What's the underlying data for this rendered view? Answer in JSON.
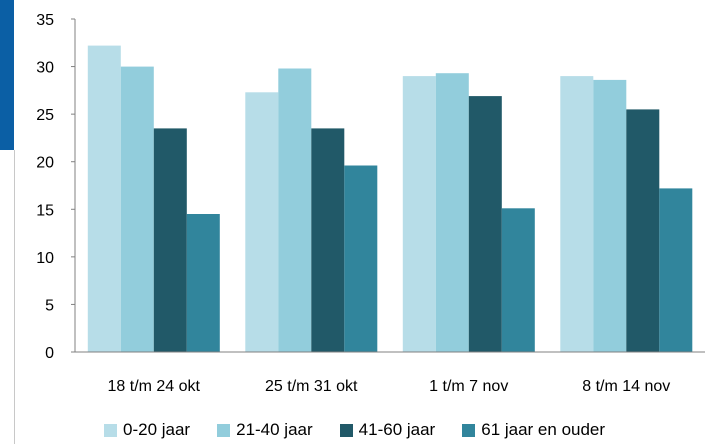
{
  "chart_data": {
    "type": "bar",
    "categories": [
      "18 t/m 24 okt",
      "25 t/m 31 okt",
      "1 t/m 7 nov",
      "8 t/m 14 nov"
    ],
    "series": [
      {
        "name": "0-20 jaar",
        "color": "#b7dde8",
        "values": [
          32.2,
          27.3,
          29.0,
          29.0
        ]
      },
      {
        "name": "21-40 jaar",
        "color": "#92cddc",
        "values": [
          30.0,
          29.8,
          29.3,
          28.6
        ]
      },
      {
        "name": "41-60 jaar",
        "color": "#215968",
        "values": [
          23.5,
          23.5,
          26.9,
          25.5
        ]
      },
      {
        "name": "61 jaar en ouder",
        "color": "#31859c",
        "values": [
          14.5,
          19.6,
          15.1,
          17.2
        ]
      }
    ],
    "ylim": [
      0,
      35
    ],
    "yticks": [
      0,
      5,
      10,
      15,
      20,
      25,
      30,
      35
    ],
    "grid": false,
    "legend_position": "bottom"
  },
  "decor": {
    "accent_color": "#0b5fa5"
  }
}
